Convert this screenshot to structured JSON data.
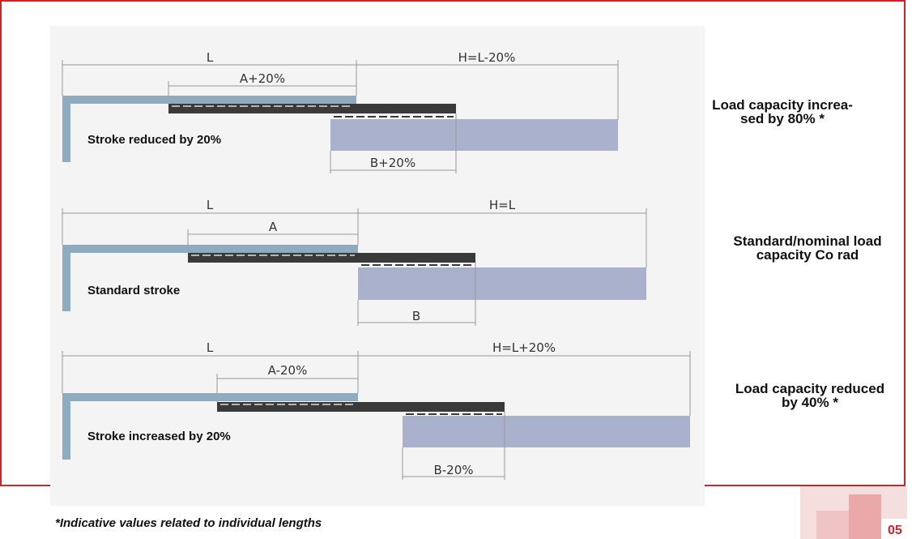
{
  "diagram": {
    "rows": [
      {
        "length_label": "L",
        "h_label": "H=L-20%",
        "a_label": "A+20%",
        "b_label": "B+20%",
        "stroke_label": "Stroke reduced by 20%",
        "capacity_label_lines": [
          "Load capacity increa-",
          "sed by 80% *"
        ]
      },
      {
        "length_label": "L",
        "h_label": "H=L",
        "a_label": "A",
        "b_label": "B",
        "stroke_label": "Standard stroke",
        "capacity_label_lines": [
          "Standard/nominal load",
          "capacity Co rad"
        ]
      },
      {
        "length_label": "L",
        "h_label": "H=L+20%",
        "a_label": "A-20%",
        "b_label": "B-20%",
        "stroke_label": "Stroke increased by 20%",
        "capacity_label_lines": [
          "Load capacity reduced",
          "by 40% *"
        ]
      }
    ],
    "footnote": "*Indicative values related to individual lengths",
    "page_number": "05",
    "colors": {
      "frame": "#d2232a",
      "fixed_rail": "#8eabbf",
      "slider": "#3a3a3a",
      "moving_rail": "#a9b1cc"
    }
  }
}
